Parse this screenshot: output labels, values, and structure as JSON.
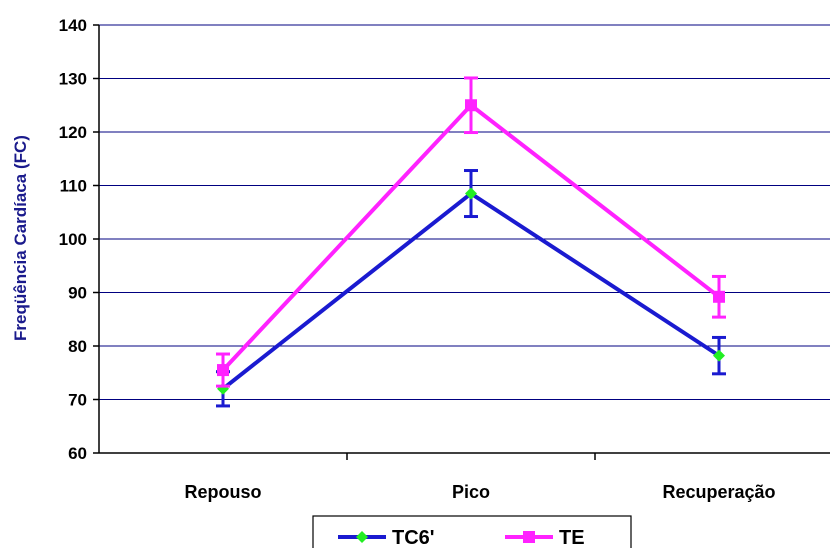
{
  "chart_data": {
    "type": "line",
    "ylabel": "Freqüência Cardíaca (FC)",
    "xlabel": "",
    "title": "",
    "categories": [
      "Repouso",
      "Pico",
      "Recuperação"
    ],
    "ylim": [
      60,
      140
    ],
    "yticks": [
      60,
      70,
      80,
      90,
      100,
      110,
      120,
      130,
      140
    ],
    "grid": true,
    "legend_position": "bottom",
    "series": [
      {
        "name": "TC6'",
        "values": [
          72,
          108.5,
          78.2
        ],
        "error": [
          3.2,
          4.3,
          3.4
        ],
        "color": "#1a1ad0",
        "marker": "diamond",
        "marker_color": "#22ee22"
      },
      {
        "name": "TE",
        "values": [
          75.5,
          125,
          89.2
        ],
        "error": [
          3.0,
          5.1,
          3.8
        ],
        "color": "#ff22ff",
        "marker": "square",
        "marker_color": "#ff22ff"
      }
    ]
  }
}
